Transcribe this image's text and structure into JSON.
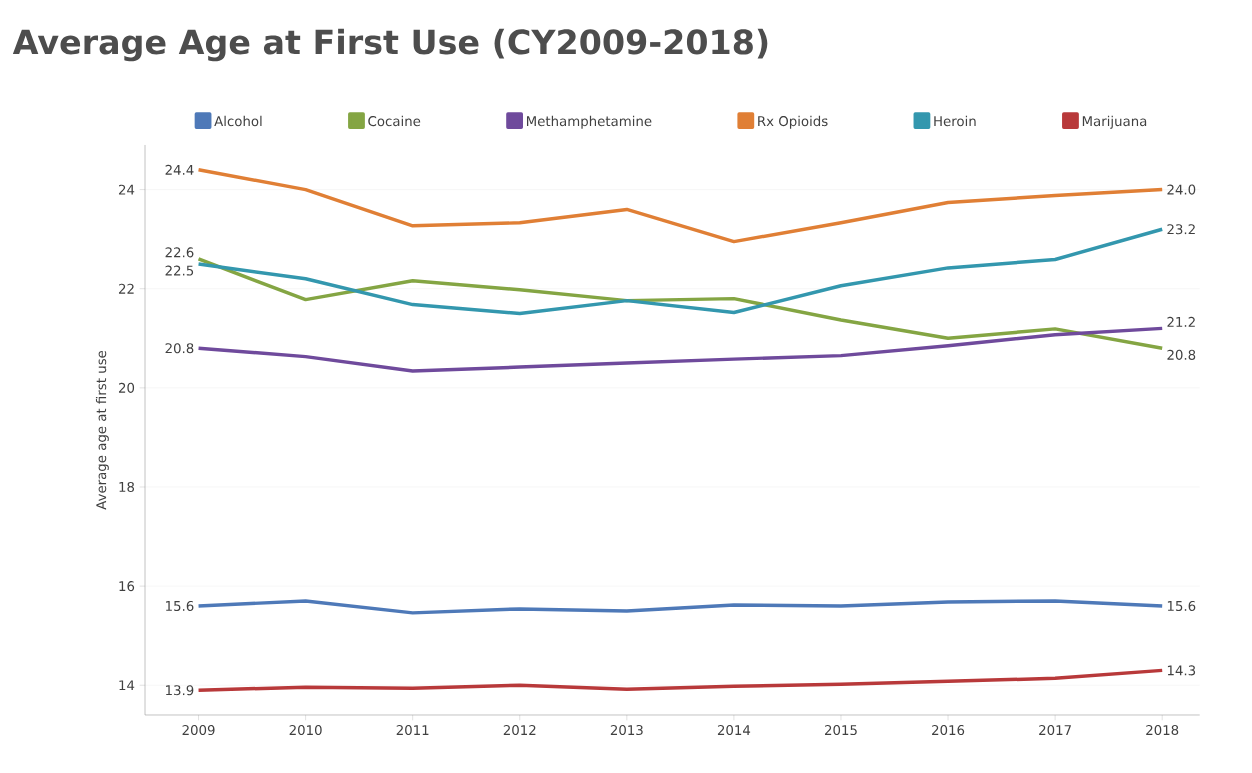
{
  "chart_data": {
    "type": "line",
    "title": "Average Age at First Use (CY2009-2018)",
    "ylabel": "Average age at first use",
    "categories": [
      "2009",
      "2010",
      "2011",
      "2012",
      "2013",
      "2014",
      "2015",
      "2016",
      "2017",
      "2018"
    ],
    "ylim": [
      13.4,
      24.9
    ],
    "yticks": [
      14,
      16,
      18,
      20,
      22,
      24
    ],
    "grid": "y",
    "legend": "top",
    "marker": "none",
    "line_style": "solid",
    "series": [
      {
        "name": "Alcohol",
        "color": "#4e79b8",
        "values": [
          15.6,
          15.7,
          15.46,
          15.54,
          15.5,
          15.62,
          15.6,
          15.68,
          15.7,
          15.6
        ],
        "value_labels": [
          "15.6",
          null,
          null,
          null,
          null,
          null,
          null,
          null,
          null,
          "15.6"
        ]
      },
      {
        "name": "Cocaine",
        "color": "#84a543",
        "values": [
          22.6,
          21.78,
          22.16,
          21.98,
          21.76,
          21.8,
          21.37,
          21.0,
          21.19,
          20.8
        ],
        "value_labels": [
          "22.6",
          null,
          null,
          null,
          null,
          null,
          null,
          null,
          null,
          "20.8"
        ]
      },
      {
        "name": "Methamphetamine",
        "color": "#6f4a9c",
        "values": [
          20.8,
          20.63,
          20.34,
          20.42,
          20.5,
          20.58,
          20.65,
          20.85,
          21.07,
          21.2
        ],
        "value_labels": [
          "20.8",
          null,
          null,
          null,
          null,
          null,
          null,
          null,
          null,
          "21.2"
        ]
      },
      {
        "name": "Rx Opioids",
        "color": "#e07f35",
        "values": [
          24.4,
          24.0,
          23.27,
          23.33,
          23.6,
          22.95,
          23.33,
          23.74,
          23.88,
          24.0
        ],
        "value_labels": [
          "24.4",
          null,
          null,
          null,
          null,
          null,
          null,
          null,
          null,
          "24.0"
        ]
      },
      {
        "name": "Heroin",
        "color": "#3397ae",
        "values": [
          22.5,
          22.2,
          21.68,
          21.5,
          21.76,
          21.52,
          22.06,
          22.42,
          22.59,
          23.2
        ],
        "value_labels": [
          "22.5",
          null,
          null,
          null,
          null,
          null,
          null,
          null,
          null,
          "23.2"
        ]
      },
      {
        "name": "Marijuana",
        "color": "#b8393a",
        "values": [
          13.9,
          13.96,
          13.94,
          14.0,
          13.92,
          13.98,
          14.02,
          14.08,
          14.14,
          14.3
        ],
        "value_labels": [
          "13.9",
          null,
          null,
          null,
          null,
          null,
          null,
          null,
          null,
          "14.3"
        ]
      }
    ]
  }
}
